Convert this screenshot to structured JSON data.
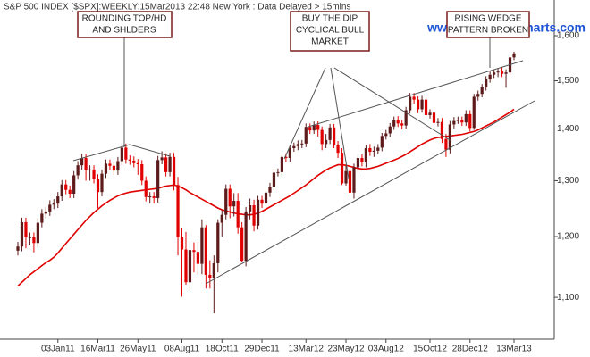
{
  "chart_data": {
    "type": "candlestick",
    "title": "S&P 500 INDEX [$SPX]:WEEKLY:15Mar2013 22:48 New York : Data Delayed > 15mins",
    "watermark": "www.incrediblecharts.com",
    "annotations": [
      [
        "ROUNDING TOP/HD",
        "AND SHLDERS"
      ],
      [
        "BUY THE DIP",
        "CYCLICAL BULL",
        "MARKET"
      ],
      [
        "RISING WEDGE",
        "PATTERN BROKEN"
      ]
    ],
    "log_scale": true,
    "up_color": "#5c1a1a",
    "down_color": "#e00000",
    "ylim": [
      1036,
      1684
    ],
    "yticks": [
      {
        "value": 1100,
        "label": "1,100"
      },
      {
        "value": 1200,
        "label": "1,200"
      },
      {
        "value": 1300,
        "label": "1,300"
      },
      {
        "value": 1400,
        "label": "1,400"
      },
      {
        "value": 1500,
        "label": "1,500"
      },
      {
        "value": 1600,
        "label": "1,600"
      }
    ],
    "categories": [
      null,
      null,
      null,
      null,
      null,
      null,
      null,
      null,
      null,
      null,
      "03Jan11",
      null,
      null,
      null,
      null,
      null,
      null,
      null,
      null,
      null,
      "16Mar11",
      null,
      null,
      null,
      null,
      null,
      null,
      null,
      null,
      null,
      "26May11",
      null,
      null,
      null,
      null,
      null,
      null,
      null,
      null,
      null,
      null,
      "08Aug11",
      null,
      null,
      null,
      null,
      null,
      null,
      null,
      null,
      null,
      "18Oct11",
      null,
      null,
      null,
      null,
      null,
      null,
      null,
      null,
      null,
      "29Dec11",
      null,
      null,
      null,
      null,
      null,
      null,
      null,
      null,
      null,
      null,
      "13Mar12",
      null,
      null,
      null,
      null,
      null,
      null,
      null,
      null,
      null,
      "23May12",
      null,
      null,
      null,
      null,
      null,
      null,
      null,
      null,
      null,
      "03Aug12",
      null,
      null,
      null,
      null,
      null,
      null,
      null,
      null,
      null,
      null,
      "15Oct12",
      null,
      null,
      null,
      null,
      null,
      null,
      null,
      null,
      null,
      "28Dec12",
      null,
      null,
      null,
      null,
      null,
      null,
      null,
      null,
      null,
      null,
      "13Mar13"
    ],
    "open": [
      1176,
      1183,
      1225,
      1199,
      1199,
      1189,
      1224,
      1240,
      1244,
      1256,
      1258,
      1271,
      1293,
      1283,
      1276,
      1310,
      1329,
      1343,
      1320,
      1321,
      1304,
      1279,
      1313,
      1332,
      1328,
      1319,
      1337,
      1363,
      1340,
      1338,
      1333,
      1331,
      1300,
      1270,
      1271,
      1268,
      1339,
      1344,
      1316,
      1345,
      1292,
      1199,
      1178,
      1124,
      1177,
      1174,
      1154,
      1216,
      1136,
      1131,
      1155,
      1224,
      1238,
      1285,
      1253,
      1263,
      1216,
      1159,
      1244,
      1255,
      1219,
      1265,
      1258,
      1278,
      1289,
      1315,
      1316,
      1345,
      1343,
      1362,
      1366,
      1370,
      1371,
      1404,
      1397,
      1408,
      1398,
      1370,
      1378,
      1403,
      1369,
      1353,
      1295,
      1318,
      1278,
      1325,
      1343,
      1335,
      1362,
      1355,
      1357,
      1363,
      1386,
      1391,
      1405,
      1418,
      1411,
      1407,
      1438,
      1466,
      1460,
      1440,
      1460,
      1428,
      1433,
      1412,
      1414,
      1380,
      1359,
      1409,
      1416,
      1418,
      1413,
      1430,
      1402,
      1466,
      1472,
      1486,
      1503,
      1513,
      1518,
      1520,
      1515,
      1518,
      1551
    ],
    "high": [
      1191,
      1233,
      1233,
      1207,
      1207,
      1232,
      1248,
      1252,
      1264,
      1266,
      1279,
      1301,
      1301,
      1291,
      1318,
      1337,
      1351,
      1351,
      1329,
      1329,
      1312,
      1321,
      1340,
      1340,
      1336,
      1345,
      1371,
      1371,
      1348,
      1346,
      1341,
      1339,
      1308,
      1279,
      1279,
      1347,
      1356,
      1352,
      1353,
      1353,
      1307,
      1214,
      1208,
      1192,
      1190,
      1190,
      1230,
      1220,
      1160,
      1168,
      1230,
      1246,
      1293,
      1293,
      1277,
      1277,
      1225,
      1252,
      1267,
      1265,
      1272,
      1272,
      1285,
      1296,
      1322,
      1323,
      1352,
      1352,
      1369,
      1373,
      1377,
      1378,
      1411,
      1411,
      1415,
      1415,
      1405,
      1390,
      1410,
      1410,
      1376,
      1362,
      1328,
      1328,
      1332,
      1350,
      1350,
      1369,
      1370,
      1365,
      1370,
      1392,
      1398,
      1412,
      1425,
      1426,
      1418,
      1445,
      1474,
      1474,
      1467,
      1468,
      1468,
      1440,
      1440,
      1422,
      1422,
      1390,
      1416,
      1424,
      1425,
      1425,
      1438,
      1438,
      1472,
      1479,
      1493,
      1510,
      1520,
      1525,
      1526,
      1530,
      1525,
      1556,
      1564
    ],
    "low": [
      1168,
      1175,
      1180,
      1185,
      1173,
      1181,
      1216,
      1232,
      1236,
      1248,
      1250,
      1263,
      1275,
      1268,
      1268,
      1302,
      1321,
      1300,
      1300,
      1295,
      1250,
      1271,
      1305,
      1320,
      1311,
      1311,
      1329,
      1332,
      1330,
      1325,
      1311,
      1292,
      1262,
      1258,
      1258,
      1260,
      1331,
      1308,
      1308,
      1282,
      1168,
      1101,
      1120,
      1110,
      1140,
      1136,
      1137,
      1114,
      1114,
      1075,
      1140,
      1200,
      1230,
      1232,
      1235,
      1205,
      1158,
      1150,
      1230,
      1209,
      1212,
      1250,
      1252,
      1270,
      1282,
      1308,
      1308,
      1335,
      1336,
      1355,
      1358,
      1362,
      1364,
      1390,
      1390,
      1385,
      1358,
      1362,
      1370,
      1362,
      1343,
      1292,
      1291,
      1267,
      1267,
      1315,
      1327,
      1325,
      1347,
      1345,
      1350,
      1356,
      1379,
      1384,
      1398,
      1404,
      1399,
      1400,
      1431,
      1452,
      1432,
      1433,
      1420,
      1421,
      1404,
      1405,
      1372,
      1345,
      1352,
      1401,
      1410,
      1406,
      1406,
      1395,
      1398,
      1458,
      1465,
      1479,
      1496,
      1506,
      1508,
      1508,
      1485,
      1512,
      1545
    ],
    "close": [
      1183,
      1225,
      1199,
      1199,
      1189,
      1224,
      1240,
      1244,
      1256,
      1258,
      1271,
      1293,
      1283,
      1276,
      1310,
      1329,
      1343,
      1320,
      1321,
      1304,
      1279,
      1313,
      1332,
      1328,
      1319,
      1337,
      1363,
      1340,
      1338,
      1333,
      1331,
      1300,
      1270,
      1271,
      1268,
      1339,
      1344,
      1316,
      1345,
      1292,
      1199,
      1178,
      1124,
      1177,
      1174,
      1154,
      1216,
      1136,
      1131,
      1155,
      1224,
      1238,
      1285,
      1253,
      1263,
      1216,
      1159,
      1244,
      1255,
      1219,
      1265,
      1258,
      1278,
      1289,
      1315,
      1316,
      1345,
      1343,
      1362,
      1366,
      1370,
      1371,
      1404,
      1397,
      1408,
      1398,
      1370,
      1378,
      1403,
      1369,
      1353,
      1295,
      1318,
      1278,
      1325,
      1343,
      1335,
      1362,
      1355,
      1357,
      1363,
      1386,
      1391,
      1405,
      1418,
      1411,
      1407,
      1438,
      1466,
      1460,
      1440,
      1460,
      1428,
      1433,
      1412,
      1414,
      1380,
      1359,
      1409,
      1416,
      1418,
      1413,
      1430,
      1402,
      1466,
      1472,
      1486,
      1503,
      1513,
      1518,
      1520,
      1515,
      1518,
      1551,
      1560
    ],
    "moving_average": {
      "color": "#e00000",
      "values": [
        1118,
        1124,
        1130,
        1136,
        1141,
        1146,
        1151,
        1156,
        1160,
        1165,
        1172,
        1180,
        1188,
        1196,
        1204,
        1212,
        1220,
        1228,
        1235,
        1242,
        1248,
        1254,
        1259,
        1264,
        1268,
        1272,
        1275,
        1277,
        1279,
        1280,
        1281,
        1282,
        1283,
        1284,
        1285,
        1286,
        1288,
        1290,
        1291,
        1292,
        1290,
        1287,
        1283,
        1278,
        1274,
        1270,
        1266,
        1262,
        1258,
        1254,
        1250,
        1247,
        1245,
        1243,
        1241,
        1240,
        1239,
        1238,
        1238,
        1239,
        1241,
        1244,
        1248,
        1252,
        1256,
        1260,
        1264,
        1268,
        1272,
        1277,
        1282,
        1287,
        1292,
        1298,
        1304,
        1310,
        1315,
        1320,
        1324,
        1327,
        1330,
        1330,
        1329,
        1327,
        1325,
        1323,
        1322,
        1322,
        1323,
        1325,
        1327,
        1330,
        1333,
        1336,
        1339,
        1342,
        1346,
        1350,
        1355,
        1360,
        1365,
        1370,
        1374,
        1378,
        1381,
        1383,
        1384,
        1385,
        1386,
        1387,
        1388,
        1389,
        1391,
        1393,
        1395,
        1398,
        1402,
        1406,
        1410,
        1414,
        1419,
        1424,
        1429,
        1434,
        1440
      ]
    }
  }
}
